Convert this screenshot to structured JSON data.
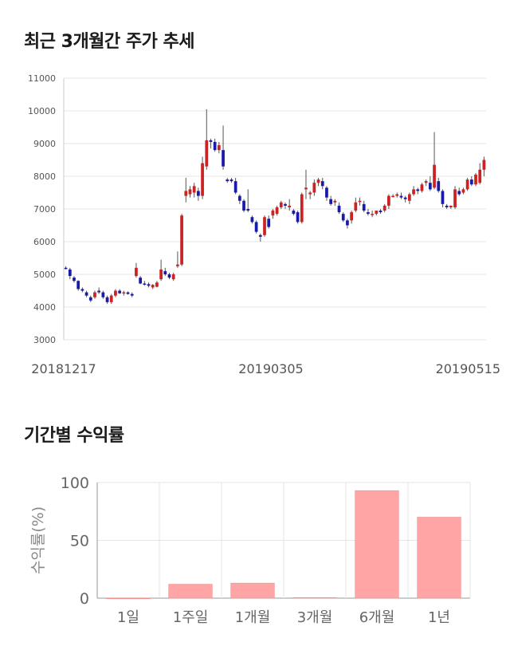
{
  "section1": {
    "title": "최근 3개월간 주가 추세"
  },
  "section2": {
    "title": "기간별 수익률"
  },
  "chart_data": [
    {
      "type": "candlestick",
      "title": "최근 3개월간 주가 추세",
      "ylim": [
        3000,
        11000
      ],
      "yticks": [
        3000,
        4000,
        5000,
        6000,
        7000,
        8000,
        9000,
        10000,
        11000
      ],
      "xtick_labels": [
        "20181217",
        "20190305",
        "20190515"
      ],
      "grid": true,
      "up_color": "#cc2222",
      "down_color": "#1a1aaa",
      "candles": [
        [
          5200,
          5250,
          5150,
          5180
        ],
        [
          5150,
          5200,
          4850,
          4950
        ],
        [
          4900,
          4950,
          4750,
          4800
        ],
        [
          4800,
          4820,
          4500,
          4550
        ],
        [
          4550,
          4600,
          4450,
          4500
        ],
        [
          4450,
          4500,
          4300,
          4350
        ],
        [
          4300,
          4350,
          4150,
          4200
        ],
        [
          4300,
          4500,
          4250,
          4450
        ],
        [
          4500,
          4600,
          4400,
          4450
        ],
        [
          4450,
          4500,
          4250,
          4300
        ],
        [
          4300,
          4350,
          4100,
          4150
        ],
        [
          4150,
          4400,
          4100,
          4350
        ],
        [
          4350,
          4550,
          4300,
          4500
        ],
        [
          4500,
          4550,
          4400,
          4420
        ],
        [
          4420,
          4500,
          4350,
          4450
        ],
        [
          4450,
          4480,
          4380,
          4400
        ],
        [
          4400,
          4450,
          4300,
          4350
        ],
        [
          4950,
          5350,
          4900,
          5200
        ],
        [
          4900,
          4950,
          4700,
          4720
        ],
        [
          4720,
          4800,
          4650,
          4700
        ],
        [
          4700,
          4750,
          4600,
          4650
        ],
        [
          4600,
          4700,
          4550,
          4680
        ],
        [
          4620,
          4800,
          4600,
          4750
        ],
        [
          4850,
          5450,
          4800,
          5150
        ],
        [
          5100,
          5200,
          4950,
          5000
        ],
        [
          5000,
          5050,
          4850,
          4900
        ],
        [
          4850,
          5050,
          4800,
          5000
        ],
        [
          5250,
          5700,
          5200,
          5300
        ],
        [
          5300,
          6850,
          5250,
          6800
        ],
        [
          7400,
          7950,
          7200,
          7550
        ],
        [
          7450,
          7700,
          7350,
          7600
        ],
        [
          7500,
          7800,
          7350,
          7700
        ],
        [
          7550,
          7650,
          7250,
          7400
        ],
        [
          7400,
          8600,
          7300,
          8400
        ],
        [
          8300,
          10050,
          8200,
          9100
        ],
        [
          9100,
          9150,
          8850,
          9050
        ],
        [
          9050,
          9150,
          8750,
          8800
        ],
        [
          8800,
          9050,
          8700,
          8950
        ],
        [
          8800,
          9550,
          8200,
          8300
        ],
        [
          7900,
          7950,
          7800,
          7850
        ],
        [
          7900,
          7950,
          7800,
          7850
        ],
        [
          7850,
          7950,
          7450,
          7500
        ],
        [
          7400,
          7450,
          7150,
          7250
        ],
        [
          7250,
          7300,
          6900,
          6950
        ],
        [
          7000,
          7600,
          6900,
          6950
        ],
        [
          6750,
          6800,
          6550,
          6600
        ],
        [
          6600,
          6650,
          6250,
          6300
        ],
        [
          6200,
          6250,
          6000,
          6150
        ],
        [
          6200,
          6800,
          6150,
          6750
        ],
        [
          6700,
          6800,
          6400,
          6450
        ],
        [
          6800,
          7000,
          6700,
          6950
        ],
        [
          6850,
          7100,
          6800,
          7050
        ],
        [
          7050,
          7250,
          7000,
          7200
        ],
        [
          7150,
          7200,
          7000,
          7100
        ],
        [
          7050,
          7300,
          6950,
          7100
        ],
        [
          6950,
          7000,
          6800,
          6850
        ],
        [
          6900,
          6950,
          6550,
          6600
        ],
        [
          6600,
          7500,
          6550,
          7450
        ],
        [
          7600,
          8200,
          7300,
          7650
        ],
        [
          7450,
          7550,
          7300,
          7500
        ],
        [
          7500,
          7900,
          7400,
          7800
        ],
        [
          7800,
          7950,
          7700,
          7900
        ],
        [
          7850,
          7950,
          7600,
          7700
        ],
        [
          7650,
          7700,
          7250,
          7350
        ],
        [
          7300,
          7400,
          7100,
          7150
        ],
        [
          7200,
          7300,
          7100,
          7250
        ],
        [
          7100,
          7200,
          6850,
          6900
        ],
        [
          6850,
          6900,
          6600,
          6650
        ],
        [
          6650,
          6700,
          6400,
          6500
        ],
        [
          6650,
          6950,
          6550,
          6900
        ],
        [
          6950,
          7350,
          6900,
          7200
        ],
        [
          7250,
          7350,
          7100,
          7250
        ],
        [
          7150,
          7250,
          6900,
          6950
        ],
        [
          6900,
          7000,
          6800,
          6850
        ],
        [
          6850,
          6950,
          6750,
          6850
        ],
        [
          6850,
          6950,
          6800,
          6950
        ],
        [
          6950,
          7000,
          6850,
          6900
        ],
        [
          6950,
          7150,
          6900,
          7100
        ],
        [
          7100,
          7450,
          7000,
          7400
        ],
        [
          7400,
          7450,
          7350,
          7400
        ],
        [
          7400,
          7500,
          7350,
          7450
        ],
        [
          7400,
          7500,
          7300,
          7350
        ],
        [
          7350,
          7400,
          7200,
          7300
        ],
        [
          7250,
          7500,
          7150,
          7450
        ],
        [
          7450,
          7700,
          7400,
          7600
        ],
        [
          7600,
          7650,
          7450,
          7550
        ],
        [
          7550,
          7800,
          7500,
          7750
        ],
        [
          7800,
          7900,
          7700,
          7850
        ],
        [
          7800,
          8000,
          7550,
          7600
        ],
        [
          7650,
          9350,
          7600,
          8350
        ],
        [
          7850,
          7950,
          7500,
          7550
        ],
        [
          7550,
          7600,
          7050,
          7150
        ],
        [
          7100,
          7150,
          7000,
          7050
        ],
        [
          7050,
          7100,
          7000,
          7100
        ],
        [
          7050,
          7700,
          7000,
          7600
        ],
        [
          7550,
          7650,
          7400,
          7450
        ],
        [
          7500,
          7650,
          7450,
          7600
        ],
        [
          7600,
          7950,
          7550,
          7900
        ],
        [
          7900,
          8000,
          7700,
          7750
        ],
        [
          7750,
          8100,
          7700,
          8050
        ],
        [
          7800,
          8400,
          7750,
          8200
        ],
        [
          8200,
          8600,
          8000,
          8500
        ]
      ]
    },
    {
      "type": "bar",
      "title": "기간별 수익률",
      "ylabel": "수익률(%)",
      "ylim": [
        0,
        100
      ],
      "yticks": [
        0,
        50,
        100
      ],
      "categories": [
        "1일",
        "1주일",
        "1개월",
        "3개월",
        "6개월",
        "1년"
      ],
      "values": [
        0,
        12,
        13,
        0.5,
        93,
        70
      ],
      "bar_color": "#ffa5a5",
      "grid": true
    }
  ]
}
